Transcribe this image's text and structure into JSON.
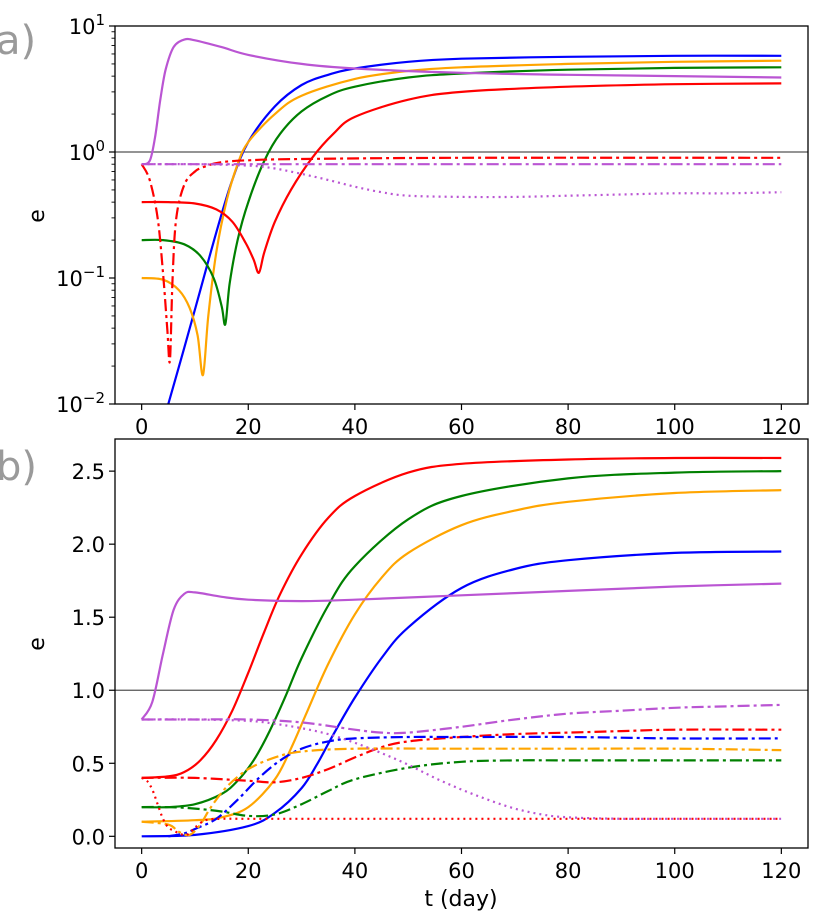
{
  "chart_data": [
    {
      "panel_label": "a)",
      "type": "line",
      "yscale": "log",
      "xlabel": "",
      "ylabel": "e",
      "xlim": [
        -5,
        125
      ],
      "ylim": [
        0.01,
        10
      ],
      "xticks": [
        0,
        20,
        40,
        60,
        80,
        100,
        120
      ],
      "xtick_labels": [
        "0",
        "20",
        "40",
        "60",
        "80",
        "100",
        "120"
      ],
      "yticks": [
        {
          "value": 0.01,
          "base": "10",
          "exp": "−2"
        },
        {
          "value": 0.1,
          "base": "10",
          "exp": "−1"
        },
        {
          "value": 1,
          "base": "10",
          "exp": "0"
        },
        {
          "value": 10,
          "base": "10",
          "exp": "1"
        }
      ],
      "hline": 1,
      "series": [
        {
          "name": "blue",
          "color": "#0000ff",
          "style": "solid",
          "x": [
            5,
            8,
            11,
            14,
            17,
            20,
            25,
            30,
            35,
            40,
            50,
            60,
            80,
            100,
            120
          ],
          "y": [
            0.01,
            0.028,
            0.08,
            0.23,
            0.6,
            1.2,
            2.3,
            3.4,
            4.1,
            4.6,
            5.2,
            5.5,
            5.7,
            5.8,
            5.8
          ]
        },
        {
          "name": "orange",
          "color": "#ffa500",
          "style": "solid",
          "x": [
            0,
            4,
            7,
            9,
            10.5,
            11.5,
            12.5,
            14,
            16,
            18,
            20,
            25,
            30,
            40,
            50,
            60,
            80,
            100,
            120
          ],
          "y": [
            0.1,
            0.097,
            0.08,
            0.058,
            0.035,
            0.017,
            0.05,
            0.16,
            0.42,
            0.8,
            1.2,
            2.0,
            2.8,
            3.8,
            4.4,
            4.7,
            5.0,
            5.2,
            5.3
          ]
        },
        {
          "name": "green",
          "color": "#008000",
          "style": "solid",
          "x": [
            0,
            4,
            8,
            11,
            13.5,
            15,
            15.7,
            16.5,
            18,
            20,
            23,
            26,
            30,
            35,
            40,
            50,
            60,
            80,
            100,
            120
          ],
          "y": [
            0.2,
            0.2,
            0.185,
            0.15,
            0.1,
            0.06,
            0.043,
            0.09,
            0.2,
            0.4,
            0.85,
            1.4,
            2.1,
            2.8,
            3.3,
            3.9,
            4.2,
            4.5,
            4.65,
            4.7
          ]
        },
        {
          "name": "red",
          "color": "#ff0000",
          "style": "solid",
          "x": [
            0,
            5,
            10,
            14,
            17,
            19.5,
            21,
            22,
            23,
            25,
            28,
            32,
            36,
            40,
            50,
            60,
            80,
            100,
            120
          ],
          "y": [
            0.4,
            0.4,
            0.39,
            0.35,
            0.28,
            0.19,
            0.14,
            0.11,
            0.16,
            0.28,
            0.5,
            0.9,
            1.4,
            1.9,
            2.6,
            3.0,
            3.3,
            3.45,
            3.5
          ]
        },
        {
          "name": "violet",
          "color": "#ba55d3",
          "style": "solid",
          "x": [
            0,
            1.5,
            2.5,
            3.5,
            4.5,
            6,
            8,
            10,
            15,
            20,
            30,
            40,
            60,
            80,
            100,
            120
          ],
          "y": [
            0.8,
            0.85,
            1.3,
            2.6,
            4.5,
            6.8,
            7.8,
            7.7,
            6.8,
            5.9,
            5.0,
            4.6,
            4.25,
            4.1,
            4.0,
            3.9
          ]
        },
        {
          "name": "red dash-dot",
          "color": "#ff0000",
          "style": "dashdot",
          "x": [
            0,
            1.5,
            3,
            4,
            4.8,
            5.3,
            5.8,
            6.5,
            8,
            10,
            12,
            15,
            20,
            30,
            60,
            120
          ],
          "y": [
            0.8,
            0.6,
            0.3,
            0.11,
            0.04,
            0.022,
            0.1,
            0.3,
            0.55,
            0.7,
            0.77,
            0.83,
            0.86,
            0.88,
            0.9,
            0.9
          ]
        },
        {
          "name": "violet dash-dot",
          "color": "#ba55d3",
          "style": "dashdot",
          "x": [
            0,
            20,
            40,
            60,
            80,
            100,
            120
          ],
          "y": [
            0.8,
            0.8,
            0.8,
            0.8,
            0.8,
            0.8,
            0.8
          ]
        },
        {
          "name": "violet dotted",
          "color": "#ba55d3",
          "style": "dotted",
          "x": [
            0,
            10,
            20,
            25,
            30,
            35,
            40,
            45,
            50,
            60,
            70,
            80,
            90,
            100,
            110,
            120
          ],
          "y": [
            0.8,
            0.8,
            0.78,
            0.74,
            0.67,
            0.6,
            0.53,
            0.48,
            0.45,
            0.44,
            0.44,
            0.45,
            0.46,
            0.47,
            0.47,
            0.48
          ]
        }
      ]
    },
    {
      "panel_label": "b)",
      "type": "line",
      "yscale": "linear",
      "xlabel": "t (day)",
      "ylabel": "e",
      "xlim": [
        -5,
        125
      ],
      "ylim": [
        -0.08,
        2.72
      ],
      "xticks": [
        0,
        20,
        40,
        60,
        80,
        100,
        120
      ],
      "xtick_labels": [
        "0",
        "20",
        "40",
        "60",
        "80",
        "100",
        "120"
      ],
      "yticks": [
        0,
        0.5,
        1.0,
        1.5,
        2.0,
        2.5
      ],
      "ytick_labels": [
        "0.0",
        "0.5",
        "1.0",
        "1.5",
        "2.0",
        "2.5"
      ],
      "hline": 1.0,
      "series": [
        {
          "name": "red",
          "color": "#ff0000",
          "style": "solid",
          "x": [
            0,
            5,
            8,
            11,
            14,
            17,
            20,
            23,
            26,
            30,
            35,
            40,
            50,
            60,
            80,
            100,
            120
          ],
          "y": [
            0.4,
            0.41,
            0.44,
            0.52,
            0.66,
            0.86,
            1.12,
            1.4,
            1.66,
            1.93,
            2.18,
            2.33,
            2.49,
            2.55,
            2.58,
            2.59,
            2.59
          ]
        },
        {
          "name": "green",
          "color": "#008000",
          "style": "solid",
          "x": [
            0,
            5,
            10,
            15,
            18,
            21,
            24,
            27,
            30,
            35,
            40,
            50,
            60,
            80,
            100,
            120
          ],
          "y": [
            0.2,
            0.2,
            0.22,
            0.29,
            0.38,
            0.52,
            0.72,
            0.96,
            1.22,
            1.58,
            1.85,
            2.17,
            2.33,
            2.45,
            2.49,
            2.5
          ]
        },
        {
          "name": "orange",
          "color": "#ffa500",
          "style": "solid",
          "x": [
            0,
            10,
            15,
            20,
            25,
            28,
            31,
            35,
            40,
            45,
            50,
            60,
            70,
            80,
            100,
            120
          ],
          "y": [
            0.1,
            0.11,
            0.13,
            0.2,
            0.39,
            0.6,
            0.85,
            1.18,
            1.52,
            1.77,
            1.94,
            2.13,
            2.23,
            2.29,
            2.35,
            2.37
          ]
        },
        {
          "name": "blue",
          "color": "#0000ff",
          "style": "solid",
          "x": [
            0,
            10,
            20,
            25,
            30,
            33,
            36,
            40,
            45,
            50,
            60,
            70,
            80,
            100,
            120
          ],
          "y": [
            0.0,
            0.01,
            0.07,
            0.16,
            0.33,
            0.5,
            0.7,
            0.95,
            1.22,
            1.43,
            1.7,
            1.83,
            1.89,
            1.94,
            1.95
          ]
        },
        {
          "name": "violet",
          "color": "#ba55d3",
          "style": "solid",
          "x": [
            0,
            2,
            4,
            6,
            8,
            10,
            15,
            20,
            30,
            40,
            60,
            80,
            100,
            120
          ],
          "y": [
            0.8,
            0.92,
            1.25,
            1.55,
            1.66,
            1.67,
            1.64,
            1.62,
            1.61,
            1.62,
            1.65,
            1.68,
            1.71,
            1.73
          ]
        },
        {
          "name": "violet dash-dot",
          "color": "#ba55d3",
          "style": "dashdot",
          "x": [
            0,
            10,
            20,
            30,
            40,
            45,
            50,
            60,
            70,
            80,
            90,
            100,
            110,
            120
          ],
          "y": [
            0.8,
            0.8,
            0.8,
            0.78,
            0.73,
            0.71,
            0.71,
            0.75,
            0.8,
            0.84,
            0.86,
            0.88,
            0.89,
            0.9
          ]
        },
        {
          "name": "red dash-dot",
          "color": "#ff0000",
          "style": "dashdot",
          "x": [
            0,
            10,
            20,
            25,
            30,
            35,
            40,
            45,
            50,
            60,
            70,
            80,
            90,
            100,
            120
          ],
          "y": [
            0.4,
            0.4,
            0.38,
            0.37,
            0.4,
            0.46,
            0.54,
            0.61,
            0.65,
            0.68,
            0.7,
            0.71,
            0.72,
            0.73,
            0.73
          ]
        },
        {
          "name": "blue dash-dot",
          "color": "#0000ff",
          "style": "dashdot",
          "x": [
            5,
            8,
            10,
            14,
            18,
            22,
            26,
            30,
            35,
            40,
            50,
            60,
            80,
            100,
            120
          ],
          "y": [
            0.0,
            0.02,
            0.05,
            0.12,
            0.25,
            0.4,
            0.52,
            0.6,
            0.65,
            0.67,
            0.68,
            0.68,
            0.68,
            0.67,
            0.67
          ]
        },
        {
          "name": "orange dash-dot",
          "color": "#ffa500",
          "style": "dashdot",
          "x": [
            0,
            5,
            7,
            9,
            11,
            13,
            16,
            20,
            25,
            30,
            40,
            60,
            80,
            100,
            120
          ],
          "y": [
            0.1,
            0.08,
            0.03,
            0.01,
            0.08,
            0.2,
            0.34,
            0.46,
            0.54,
            0.58,
            0.6,
            0.6,
            0.6,
            0.6,
            0.59
          ]
        },
        {
          "name": "green dash-dot",
          "color": "#008000",
          "style": "dashdot",
          "x": [
            0,
            5,
            10,
            15,
            20,
            25,
            30,
            35,
            40,
            50,
            60,
            70,
            80,
            100,
            120
          ],
          "y": [
            0.2,
            0.2,
            0.19,
            0.17,
            0.14,
            0.15,
            0.22,
            0.31,
            0.39,
            0.47,
            0.51,
            0.52,
            0.52,
            0.52,
            0.52
          ]
        },
        {
          "name": "violet dotted",
          "color": "#ba55d3",
          "style": "dotted",
          "x": [
            0,
            10,
            20,
            25,
            30,
            35,
            40,
            45,
            50,
            55,
            60,
            65,
            70,
            75,
            80,
            90,
            100,
            120
          ],
          "y": [
            0.8,
            0.8,
            0.79,
            0.77,
            0.74,
            0.7,
            0.64,
            0.57,
            0.49,
            0.4,
            0.32,
            0.25,
            0.19,
            0.15,
            0.13,
            0.12,
            0.12,
            0.12
          ]
        },
        {
          "name": "red dotted",
          "color": "#ff0000",
          "style": "dotted",
          "x": [
            0,
            1,
            2,
            3,
            4,
            5,
            6,
            7,
            8,
            9,
            10,
            12,
            15,
            20,
            40,
            80,
            120
          ],
          "y": [
            0.4,
            0.38,
            0.32,
            0.22,
            0.12,
            0.06,
            0.04,
            0.02,
            0.01,
            0.02,
            0.06,
            0.11,
            0.12,
            0.12,
            0.12,
            0.12,
            0.12
          ]
        }
      ]
    }
  ]
}
